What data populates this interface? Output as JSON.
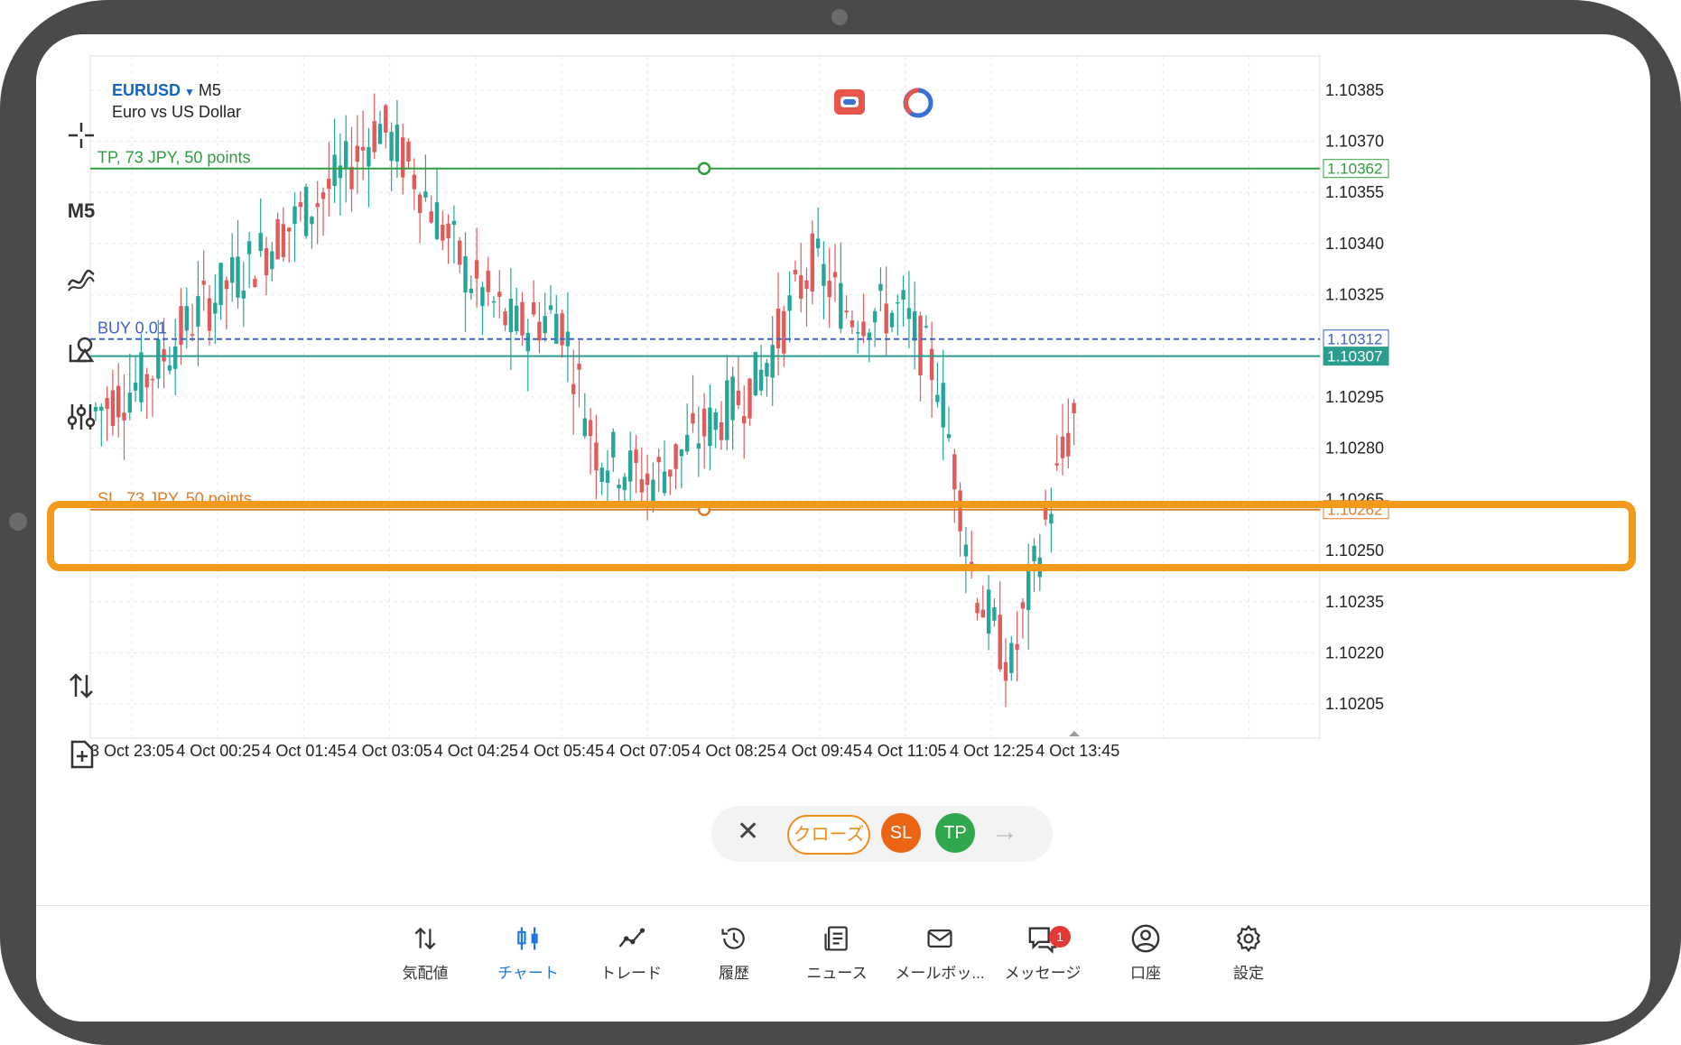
{
  "symbol": {
    "code": "EURUSD",
    "timeframe": "M5",
    "description": "Euro vs US Dollar"
  },
  "toolbar": {
    "timeframe_label": "M5"
  },
  "chart_data": {
    "type": "candlestick",
    "price_axis_ticks": [
      "1.10385",
      "1.10370",
      "1.10355",
      "1.10340",
      "1.10325",
      "1.10295",
      "1.10280",
      "1.10265",
      "1.10250",
      "1.10235",
      "1.10220",
      "1.10205"
    ],
    "time_axis_ticks": [
      "3 Oct 23:05",
      "4 Oct 00:25",
      "4 Oct 01:45",
      "4 Oct 03:05",
      "4 Oct 04:25",
      "4 Oct 05:45",
      "4 Oct 07:05",
      "4 Oct 08:25",
      "4 Oct 09:45",
      "4 Oct 11:05",
      "4 Oct 12:25",
      "4 Oct 13:45"
    ],
    "ylim": [
      1.10195,
      1.10395
    ],
    "lines": {
      "tp": {
        "label": "TP, 73 JPY, 50 points",
        "price": 1.10362,
        "price_label": "1.10362",
        "color": "#2e9d3e"
      },
      "buy": {
        "label": "BUY 0.01",
        "price": 1.10312,
        "price_label": "1.10312",
        "color": "#3f62c9"
      },
      "bid": {
        "price": 1.10307,
        "price_label": "1.10307",
        "color": "#2a9d8f"
      },
      "sl": {
        "label": "SL, 73 JPY, 50 points",
        "price": 1.10262,
        "price_label": "1.10262",
        "color": "#e07b26"
      }
    },
    "up_color": "#26a69a",
    "down_color": "#e15b5b",
    "grid": true
  },
  "action_bar": {
    "close_label": "クローズ",
    "sl_label": "SL",
    "tp_label": "TP"
  },
  "bottom_nav": [
    {
      "label": "気配値"
    },
    {
      "label": "チャート"
    },
    {
      "label": "トレード"
    },
    {
      "label": "履歴"
    },
    {
      "label": "ニュース"
    },
    {
      "label": "メールボッ..."
    },
    {
      "label": "メッセージ",
      "badge": "1"
    },
    {
      "label": "口座"
    },
    {
      "label": "設定"
    }
  ],
  "colors": {
    "highlight": "#f39a1d",
    "active_tab": "#1f7ae0"
  }
}
